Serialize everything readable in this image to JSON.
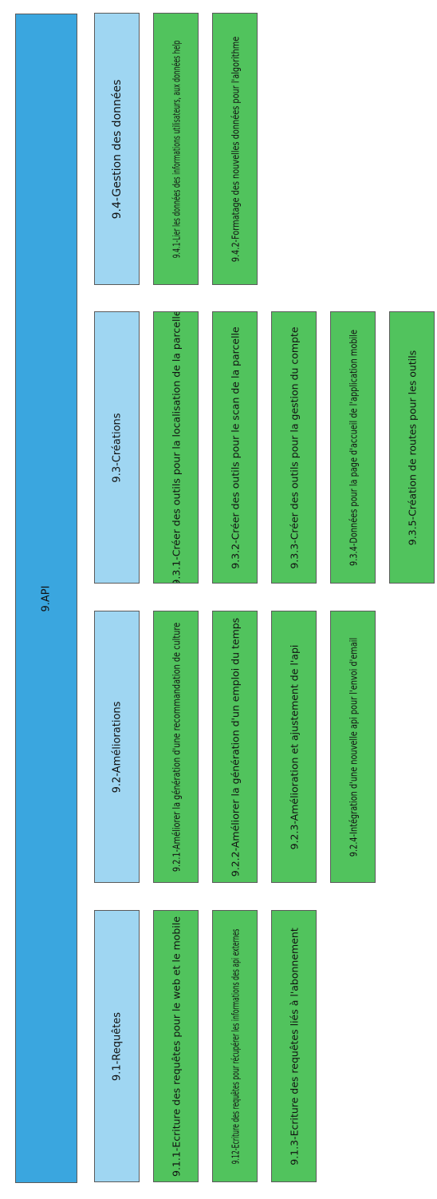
{
  "colors": {
    "root": "#3aa6df",
    "category": "#9fd6f2",
    "task": "#51c35d",
    "border": "#5a5a5a"
  },
  "root": {
    "label": "9.API"
  },
  "groups": {
    "requetes": {
      "label": "9.1-Requêtes",
      "tasks": [
        "9.1.1-Ecriture des requêtes pour le web et le mobile",
        "9.12-Ecriture des requêtes pour récupérer les informations des api externes",
        "9.1.3-Ecriture des requêtes liés à l'abonnement"
      ]
    },
    "ameliorations": {
      "label": "9.2-Améliorations",
      "tasks": [
        "9.2.1-Améliorer la génération d'une recommandation de culture",
        "9.2.2-Améliorer la génération d'un emploi du temps",
        "9.2.3-Amélioration et ajustement de l'api",
        "9.2.4-Intégration d'une nouvelle api pour l'envoi d'email"
      ]
    },
    "creations": {
      "label": "9.3-Créations",
      "tasks": [
        "9.3.1-Créer des outils pour la localisation de la parcelle",
        "9.3.2-Créer des outils pour le scan de la parcelle",
        "9.3.3-Créer des outils pour la gestion du compte",
        "9.3.4-Données pour la page d'accueil de l'application mobile",
        "9.3.5-Création de routes pour les outils"
      ]
    },
    "gestion": {
      "label": "9.4-Gestion des données",
      "tasks": [
        "9.4.1-Lier les données des informations utilisateurs, aux données help",
        "9.4.2-Formatage des nouvelles données pour l'algorithme"
      ]
    }
  }
}
